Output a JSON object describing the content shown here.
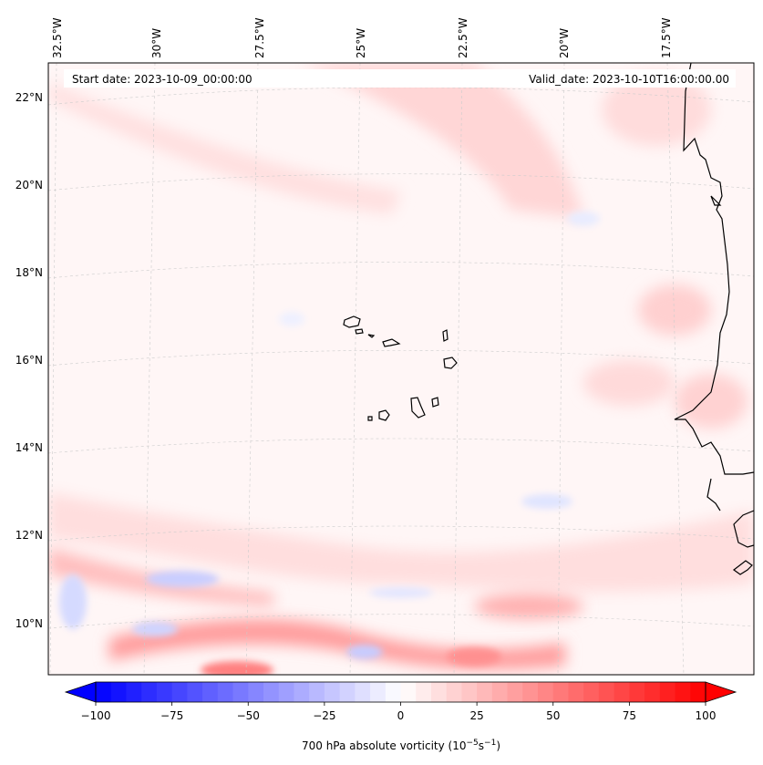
{
  "map": {
    "header": {
      "start_date": "Start date: 2023-10-09_00:00:00",
      "valid_date": "Valid_date: 2023-10-10T16:00:00.00"
    },
    "lon_labels": [
      "32.5°W",
      "30°W",
      "27.5°W",
      "25°W",
      "22.5°W",
      "20°W",
      "17.5°W"
    ],
    "lat_labels": [
      "22°N",
      "20°N",
      "18°N",
      "16°N",
      "14°N",
      "12°N",
      "10°N"
    ],
    "gridlines": true,
    "region": "Cabo Verde islands and West African coast",
    "colormap": "bwr",
    "colors": {
      "negative": "#0000ff",
      "neutral": "#ffffff",
      "positive": "#ff0000",
      "coast": "#000000"
    }
  },
  "colorbar": {
    "label": "700 hPa absolute vorticity (10",
    "label_exp1": "−5",
    "label_mid": "s",
    "label_exp2": "−1",
    "label_end": ")",
    "min": -100,
    "max": 100,
    "ticks": [
      "−100",
      "−75",
      "−50",
      "−25",
      "0",
      "25",
      "50",
      "75",
      "100"
    ],
    "tick_values": [
      -100,
      -75,
      -50,
      -25,
      0,
      25,
      50,
      75,
      100
    ],
    "extend": "both"
  }
}
